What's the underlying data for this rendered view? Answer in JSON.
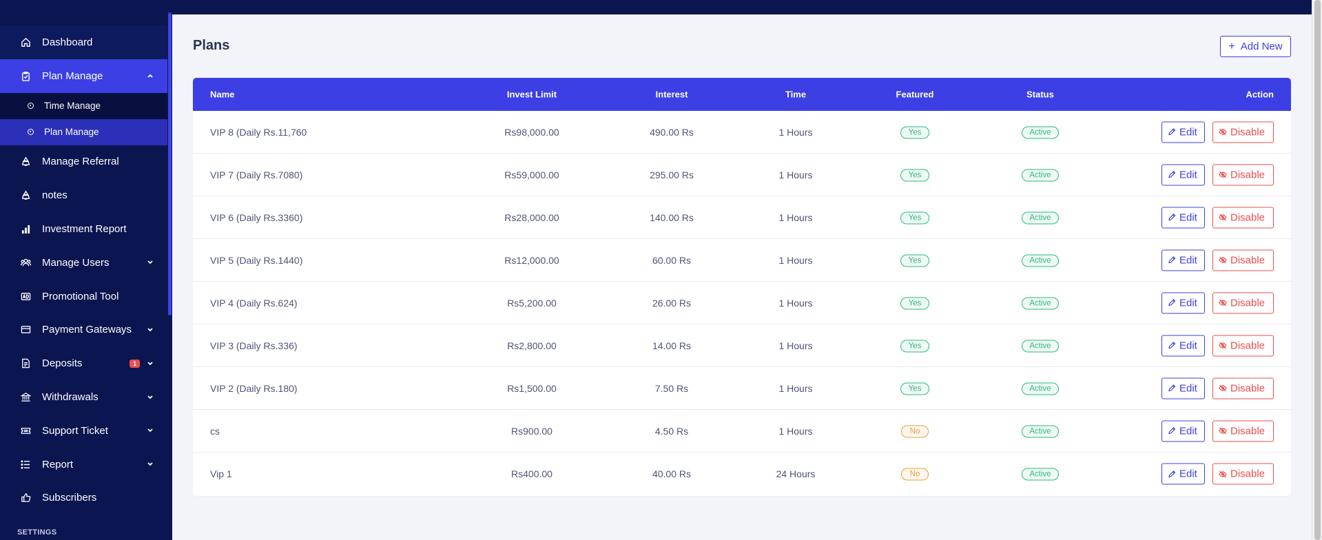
{
  "sidebar": {
    "items": [
      {
        "label": "Dashboard",
        "icon": "home-icon"
      },
      {
        "label": "Plan Manage",
        "icon": "clipboard-icon"
      },
      {
        "label": "Manage Referral",
        "icon": "referral-icon"
      },
      {
        "label": "notes",
        "icon": "referral-icon"
      },
      {
        "label": "Investment Report",
        "icon": "bar-chart-icon"
      },
      {
        "label": "Manage Users",
        "icon": "users-icon"
      },
      {
        "label": "Promotional Tool",
        "icon": "ad-icon"
      },
      {
        "label": "Payment Gateways",
        "icon": "credit-card-icon"
      },
      {
        "label": "Deposits",
        "icon": "deposit-icon",
        "badge": "1"
      },
      {
        "label": "Withdrawals",
        "icon": "bank-icon"
      },
      {
        "label": "Support Ticket",
        "icon": "ticket-icon"
      },
      {
        "label": "Report",
        "icon": "list-icon"
      },
      {
        "label": "Subscribers",
        "icon": "thumbs-up-icon"
      }
    ],
    "plan_submenu": [
      {
        "label": "Time Manage"
      },
      {
        "label": "Plan Manage"
      }
    ],
    "settings_label": "SETTINGS"
  },
  "page": {
    "title": "Plans",
    "add_label": "Add New"
  },
  "table": {
    "headers": {
      "name": "Name",
      "limit": "Invest Limit",
      "interest": "Interest",
      "time": "Time",
      "featured": "Featured",
      "status": "Status",
      "action": "Action"
    },
    "rows": [
      {
        "name": "VIP 8 (Daily Rs.11,760",
        "limit": "Rs98,000.00",
        "interest": "490.00 Rs",
        "time": "1 Hours",
        "featured": "Yes",
        "status": "Active"
      },
      {
        "name": "VIP 7 (Daily Rs.7080)",
        "limit": "Rs59,000.00",
        "interest": "295.00 Rs",
        "time": "1 Hours",
        "featured": "Yes",
        "status": "Active"
      },
      {
        "name": "VIP 6 (Daily Rs.3360)",
        "limit": "Rs28,000.00",
        "interest": "140.00 Rs",
        "time": "1 Hours",
        "featured": "Yes",
        "status": "Active"
      },
      {
        "name": "VIP 5 (Daily Rs.1440)",
        "limit": "Rs12,000.00",
        "interest": "60.00 Rs",
        "time": "1 Hours",
        "featured": "Yes",
        "status": "Active"
      },
      {
        "name": "VIP 4 (Daily Rs.624)",
        "limit": "Rs5,200.00",
        "interest": "26.00 Rs",
        "time": "1 Hours",
        "featured": "Yes",
        "status": "Active"
      },
      {
        "name": "VIP 3 (Daily Rs.336)",
        "limit": "Rs2,800.00",
        "interest": "14.00 Rs",
        "time": "1 Hours",
        "featured": "Yes",
        "status": "Active"
      },
      {
        "name": "VIP 2 (Daily Rs.180)",
        "limit": "Rs1,500.00",
        "interest": "7.50 Rs",
        "time": "1 Hours",
        "featured": "Yes",
        "status": "Active"
      },
      {
        "name": "cs",
        "limit": "Rs900.00",
        "interest": "4.50 Rs",
        "time": "1 Hours",
        "featured": "No",
        "status": "Active"
      },
      {
        "name": "Vip 1",
        "limit": "Rs400.00",
        "interest": "40.00 Rs",
        "time": "24 Hours",
        "featured": "No",
        "status": "Active"
      }
    ],
    "edit_label": "Edit",
    "disable_label": "Disable"
  },
  "colors": {
    "sidebar_bg": "#0b1550",
    "accent": "#3b3fe4",
    "success": "#2fb97a",
    "warning": "#ee9c3a",
    "danger": "#eb4d4d"
  }
}
